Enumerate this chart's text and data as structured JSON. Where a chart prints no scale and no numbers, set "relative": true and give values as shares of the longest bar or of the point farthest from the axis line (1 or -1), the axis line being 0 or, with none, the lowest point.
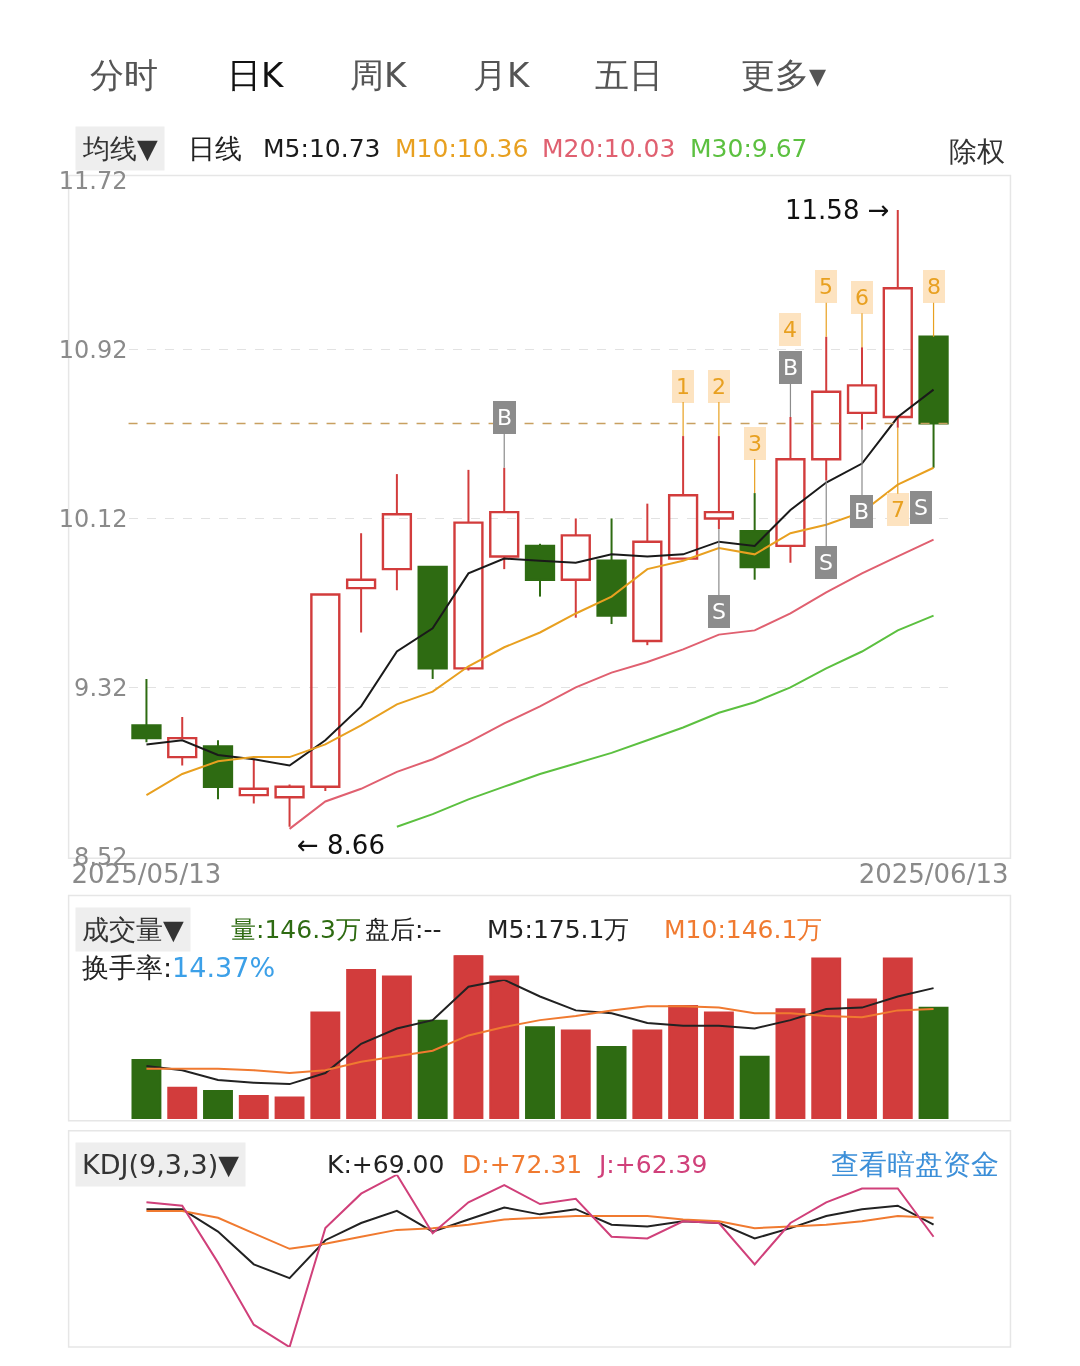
{
  "chart_data": [
    {
      "type": "candlestick",
      "title": "均线▼",
      "categories": [
        "2025/05/13",
        null,
        null,
        null,
        null,
        null,
        null,
        null,
        null,
        null,
        null,
        null,
        null,
        null,
        null,
        null,
        null,
        null,
        null,
        null,
        null,
        null,
        "2025/06/13"
      ],
      "ohlc": [
        [
          9.14,
          9.36,
          9.06,
          9.08
        ],
        [
          8.99,
          9.18,
          8.95,
          9.08
        ],
        [
          9.04,
          9.07,
          8.79,
          8.85
        ],
        [
          8.81,
          8.98,
          8.77,
          8.84
        ],
        [
          8.8,
          8.86,
          8.66,
          8.85
        ],
        [
          8.85,
          9.76,
          8.83,
          9.76
        ],
        [
          9.79,
          10.05,
          9.58,
          9.83
        ],
        [
          9.88,
          10.33,
          9.78,
          10.14
        ],
        [
          9.89,
          9.89,
          9.36,
          9.41
        ],
        [
          9.41,
          10.35,
          9.4,
          10.1
        ],
        [
          9.94,
          10.36,
          9.88,
          10.15
        ],
        [
          9.99,
          10.0,
          9.75,
          9.83
        ],
        [
          9.83,
          10.12,
          9.65,
          10.04
        ],
        [
          9.92,
          10.12,
          9.62,
          9.66
        ],
        [
          9.54,
          10.19,
          9.52,
          10.01
        ],
        [
          9.93,
          10.51,
          9.93,
          10.23
        ],
        [
          10.12,
          10.51,
          10.07,
          10.15
        ],
        [
          10.06,
          10.24,
          9.83,
          9.89
        ],
        [
          9.99,
          10.6,
          9.91,
          10.4
        ],
        [
          10.4,
          10.98,
          10.3,
          10.72
        ],
        [
          10.62,
          10.93,
          10.54,
          10.75
        ],
        [
          10.6,
          11.58,
          10.55,
          11.21
        ],
        [
          10.98,
          10.98,
          10.36,
          10.57
        ]
      ],
      "colors": [
        "#2e6b12",
        "#d23c3c",
        "#2e6b12",
        "#d23c3c",
        "#d23c3c",
        "#d23c3c",
        "#d23c3c",
        "#d23c3c",
        "#2e6b12",
        "#d23c3c",
        "#d23c3c",
        "#2e6b12",
        "#d23c3c",
        "#2e6b12",
        "#d23c3c",
        "#d23c3c",
        "#d23c3c",
        "#2e6b12",
        "#d23c3c",
        "#d23c3c",
        "#d23c3c",
        "#d23c3c",
        "#2e6b12"
      ],
      "series": [
        {
          "type": "line",
          "name": "M5:10.73",
          "color": "#1a1a1a",
          "values": [
            9.05,
            9.07,
            9.0,
            8.98,
            8.95,
            9.07,
            9.23,
            9.49,
            9.6,
            9.86,
            9.93,
            9.92,
            9.91,
            9.95,
            9.94,
            9.95,
            10.01,
            9.99,
            10.16,
            10.29,
            10.38,
            10.6,
            10.73
          ]
        },
        {
          "type": "line",
          "name": "M10:10.36",
          "color": "#e8a020",
          "values": [
            8.81,
            8.91,
            8.97,
            8.99,
            8.99,
            9.05,
            9.14,
            9.24,
            9.3,
            9.42,
            9.51,
            9.58,
            9.67,
            9.75,
            9.88,
            9.92,
            9.98,
            9.95,
            10.05,
            10.09,
            10.15,
            10.28,
            10.36
          ]
        },
        {
          "type": "line",
          "name": "M20:10.03",
          "color": "#e06070",
          "values": [
            null,
            null,
            null,
            null,
            8.65,
            8.78,
            8.84,
            8.92,
            8.98,
            9.06,
            9.15,
            9.23,
            9.32,
            9.39,
            9.44,
            9.5,
            9.57,
            9.59,
            9.67,
            9.77,
            9.86,
            9.94,
            10.02
          ]
        },
        {
          "type": "line",
          "name": "M30:9.67",
          "color": "#5cc040",
          "values": [
            null,
            null,
            null,
            null,
            null,
            null,
            null,
            8.66,
            8.72,
            8.79,
            8.85,
            8.91,
            8.96,
            9.01,
            9.07,
            9.13,
            9.2,
            9.25,
            9.32,
            9.41,
            9.49,
            9.59,
            9.66
          ]
        }
      ],
      "ylim": [
        8.52,
        11.72
      ],
      "yticks": [
        8.52,
        9.32,
        10.12,
        10.92,
        11.72
      ],
      "grid": "y",
      "legend": "top left",
      "ref_lines": [
        {
          "axis": "y",
          "value": 10.57,
          "color": "#c8a060",
          "line_style": "dashed"
        }
      ],
      "annotations": [
        "分时",
        "日K",
        "周K",
        "月K",
        "五日",
        "更多▾",
        "日线",
        "除权",
        "11.58 →",
        "← 8.66",
        {
          "text": "B",
          "y": 10.36
        },
        {
          "text": "1",
          "y": 10.51
        },
        {
          "text": "2",
          "y": 10.51
        },
        {
          "text": "S",
          "y": 10.07
        },
        {
          "text": "3",
          "y": 10.24
        },
        {
          "text": "B",
          "y": 10.6
        },
        "4",
        {
          "text": "5",
          "y": 10.98
        },
        {
          "text": "S",
          "y": 10.3
        },
        {
          "text": "6",
          "y": 10.93
        },
        {
          "text": "B",
          "y": 10.54
        },
        {
          "text": "7",
          "y": 10.55
        },
        "S",
        {
          "text": "8",
          "y": 10.98
        }
      ]
    },
    {
      "type": "bar",
      "title": "成交量▼",
      "relative": true,
      "categories": [
        null,
        null,
        null,
        null,
        null,
        null,
        null,
        null,
        null,
        null,
        null,
        null,
        null,
        null,
        null,
        null,
        null,
        null,
        null,
        null,
        null,
        null,
        null
      ],
      "colors": [
        "#2e6b12",
        "#d23c3c",
        "#2e6b12",
        "#d23c3c",
        "#d23c3c",
        "#d23c3c",
        "#d23c3c",
        "#d23c3c",
        "#2e6b12",
        "#d23c3c",
        "#d23c3c",
        "#2e6b12",
        "#d23c3c",
        "#2e6b12",
        "#d23c3c",
        "#d23c3c",
        "#d23c3c",
        "#2e6b12",
        "#d23c3c",
        "#d23c3c",
        "#d23c3c",
        "#d23c3c",
        "#2e6b12"
      ],
      "values": [
        0.36,
        0.19,
        0.17,
        0.14,
        0.13,
        0.65,
        0.91,
        0.87,
        0.6,
        1,
        0.87,
        0.56,
        0.54,
        0.44,
        0.54,
        0.69,
        0.65,
        0.38,
        0.67,
        0.98,
        0.73,
        0.98,
        0.68
      ],
      "annotations": [
        "量:146.3万",
        "盘后:--",
        "换手率:14.37%"
      ]
    },
    {
      "type": "line",
      "relative": true,
      "categories": [
        null,
        null,
        null,
        null,
        null,
        null,
        null,
        null,
        null,
        null,
        null,
        null,
        null,
        null,
        null,
        null,
        null,
        null,
        null,
        null,
        null,
        null,
        null
      ],
      "legend": "top right",
      "series": [
        {
          "name": "M5:175.1万",
          "color": "#222222",
          "values": [
            0.38,
            0.35,
            0.28,
            0.26,
            0.25,
            0.33,
            0.54,
            0.65,
            0.71,
            0.95,
            1,
            0.88,
            0.78,
            0.76,
            0.69,
            0.67,
            0.67,
            0.65,
            0.71,
            0.79,
            0.8,
            0.88,
            0.94
          ]
        },
        {
          "name": "M10:146.1万",
          "color": "#f07a30",
          "values": [
            0.36,
            0.36,
            0.36,
            0.35,
            0.33,
            0.35,
            0.41,
            0.45,
            0.49,
            0.6,
            0.66,
            0.71,
            0.74,
            0.78,
            0.81,
            0.81,
            0.8,
            0.76,
            0.76,
            0.74,
            0.73,
            0.78,
            0.79
          ]
        }
      ]
    },
    {
      "type": "line",
      "title": "KDJ(9,3,3)▼",
      "relative": true,
      "categories": [
        null,
        null,
        null,
        null,
        null,
        null,
        null,
        null,
        null,
        null,
        null,
        null,
        null,
        null,
        null,
        null,
        null,
        null,
        null,
        null,
        null,
        null,
        null
      ],
      "legend": "top left",
      "series": [
        {
          "name": "K:+69.00",
          "color": "#222222",
          "values": [
            0.8,
            0.8,
            0.67,
            0.48,
            0.4,
            0.62,
            0.72,
            0.79,
            0.67,
            0.74,
            0.81,
            0.77,
            0.8,
            0.71,
            0.7,
            0.73,
            0.72,
            0.63,
            0.69,
            0.76,
            0.8,
            0.82,
            0.71
          ]
        },
        {
          "name": "D:+72.31",
          "color": "#f07a30",
          "values": [
            0.79,
            0.79,
            0.75,
            0.66,
            0.57,
            0.6,
            0.64,
            0.68,
            0.69,
            0.71,
            0.74,
            0.75,
            0.76,
            0.76,
            0.76,
            0.74,
            0.73,
            0.69,
            0.7,
            0.71,
            0.73,
            0.76,
            0.75
          ]
        },
        {
          "name": "J:+62.39",
          "color": "#d0407a",
          "values": [
            0.84,
            0.82,
            0.49,
            0.13,
            0,
            0.69,
            0.89,
            1,
            0.66,
            0.84,
            0.94,
            0.83,
            0.86,
            0.64,
            0.63,
            0.73,
            0.72,
            0.48,
            0.72,
            0.84,
            0.92,
            0.92,
            0.64
          ]
        }
      ],
      "annotations": [
        "查看暗盘资金"
      ]
    }
  ]
}
